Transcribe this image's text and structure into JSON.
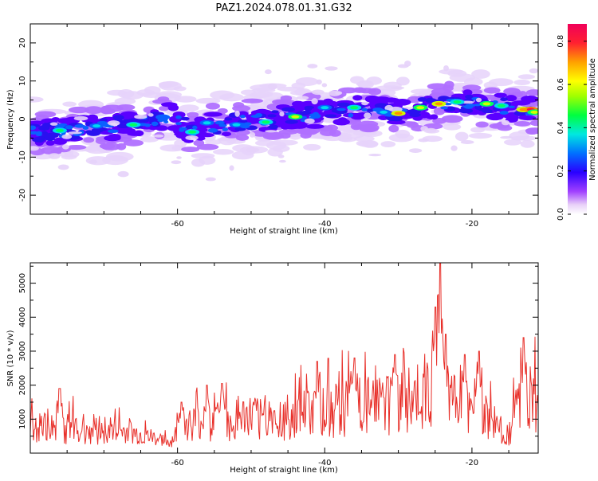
{
  "title": "PAZ1.2024.078.01.31.G32",
  "chart_data": [
    {
      "type": "heatmap",
      "xlabel": "Height of straight line (km)",
      "ylabel": "Frequency (Hz)",
      "xlim": [
        -80,
        -11
      ],
      "ylim": [
        -25,
        25
      ],
      "x_ticks": [
        -60,
        -40,
        -20
      ],
      "y_ticks": [
        -20,
        -10,
        0,
        10,
        20
      ],
      "colorbar": {
        "label": "Normalized spectral amplitude",
        "range": [
          0,
          0.88
        ],
        "ticks": [
          0.0,
          0.2,
          0.4,
          0.6,
          0.8
        ]
      },
      "ridge": [
        {
          "x": -80,
          "y": -3.5
        },
        {
          "x": -75,
          "y": -3.0
        },
        {
          "x": -70,
          "y": -2.0
        },
        {
          "x": -65,
          "y": -1.5
        },
        {
          "x": -61,
          "y": 1.0
        },
        {
          "x": -58,
          "y": -3.5
        },
        {
          "x": -55,
          "y": -1.5
        },
        {
          "x": -50,
          "y": -0.5
        },
        {
          "x": -45,
          "y": 0.5
        },
        {
          "x": -40,
          "y": 1.5
        },
        {
          "x": -35,
          "y": 2.5
        },
        {
          "x": -30,
          "y": 2.0
        },
        {
          "x": -25,
          "y": 3.5
        },
        {
          "x": -20,
          "y": 4.0
        },
        {
          "x": -15,
          "y": 3.0
        },
        {
          "x": -11,
          "y": 2.0
        }
      ]
    },
    {
      "type": "line",
      "xlabel": "Height of straight line (km)",
      "ylabel": "SNR (10 * v/v)",
      "xlim": [
        -80,
        -11
      ],
      "ylim": [
        0,
        5600
      ],
      "x_ticks": [
        -60,
        -40,
        -20
      ],
      "y_ticks": [
        1000,
        2000,
        3000,
        4000,
        5000
      ],
      "line_color": "#e8302a",
      "envelope": [
        {
          "x": -80,
          "y": 700
        },
        {
          "x": -75,
          "y": 750
        },
        {
          "x": -70,
          "y": 700
        },
        {
          "x": -65,
          "y": 500
        },
        {
          "x": -61,
          "y": 300
        },
        {
          "x": -59,
          "y": 800
        },
        {
          "x": -55,
          "y": 900
        },
        {
          "x": -50,
          "y": 1000
        },
        {
          "x": -45,
          "y": 1050
        },
        {
          "x": -40,
          "y": 1200
        },
        {
          "x": -35,
          "y": 1400
        },
        {
          "x": -30,
          "y": 1500
        },
        {
          "x": -27,
          "y": 1600
        },
        {
          "x": -24,
          "y": 1500
        },
        {
          "x": -20,
          "y": 1400
        },
        {
          "x": -17,
          "y": 900
        },
        {
          "x": -15,
          "y": 500
        },
        {
          "x": -13,
          "y": 1800
        },
        {
          "x": -11,
          "y": 1500
        }
      ],
      "peaks": [
        {
          "x": -76,
          "y": 1900
        },
        {
          "x": -59.5,
          "y": 1500
        },
        {
          "x": -56,
          "y": 2000
        },
        {
          "x": -54,
          "y": 2050
        },
        {
          "x": -41,
          "y": 2700
        },
        {
          "x": -36,
          "y": 2800
        },
        {
          "x": -30.5,
          "y": 2900
        },
        {
          "x": -25,
          "y": 4300
        },
        {
          "x": -24.3,
          "y": 5600
        },
        {
          "x": -23.6,
          "y": 3500
        },
        {
          "x": -21,
          "y": 2900
        },
        {
          "x": -19,
          "y": 3000
        },
        {
          "x": -13,
          "y": 3400
        }
      ]
    }
  ]
}
